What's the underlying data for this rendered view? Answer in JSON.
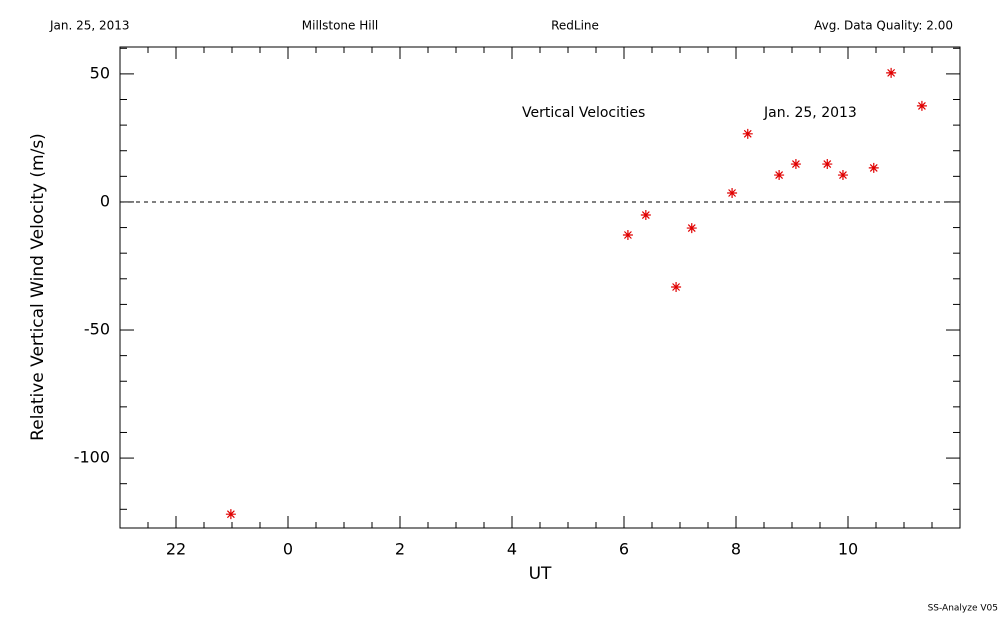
{
  "header": {
    "date": "Jan. 25, 2013",
    "site": "Millstone Hill",
    "line": "RedLine",
    "quality": "Avg. Data Quality: 2.00"
  },
  "footer": "SS-Analyze V05",
  "chart_data": {
    "type": "scatter",
    "xlabel": "UT",
    "ylabel": "Relative Vertical Wind Velocity (m/s)",
    "annotations": [
      "Vertical Velocities",
      "Jan. 25, 2013"
    ],
    "series": [
      {
        "name": null,
        "color": "#e00000",
        "x": [
          -1.02,
          6.07,
          6.39,
          6.93,
          7.21,
          7.93,
          8.21,
          8.77,
          9.07,
          9.63,
          9.91,
          10.46,
          10.77,
          11.32
        ],
        "values": [
          -121.9,
          -12.9,
          -5.1,
          -33.2,
          -10.2,
          3.5,
          26.6,
          10.5,
          14.8,
          14.8,
          10.5,
          13.3,
          50.4,
          37.5
        ]
      }
    ],
    "xlim": [
      -3,
      12
    ],
    "ylim": [
      -127.3,
      60.5
    ],
    "xticks": [
      {
        "value": -2,
        "label": "22"
      },
      0,
      2,
      4,
      6,
      8,
      10
    ],
    "yticks": [
      -100,
      -50,
      0,
      50
    ],
    "xminorticks": [
      -3,
      -2.5,
      -1.5,
      -1,
      -0.5,
      0.5,
      1,
      1.5,
      2.5,
      3,
      3.5,
      4.5,
      5,
      5.5,
      6.5,
      7,
      7.5,
      8.5,
      9,
      9.5,
      10.5,
      11,
      11.5
    ],
    "yminorticks": [
      -120,
      -110,
      -90,
      -80,
      -70,
      -60,
      -40,
      -30,
      -20,
      -10,
      10,
      20,
      30,
      40,
      60
    ],
    "reference_line": 0
  }
}
